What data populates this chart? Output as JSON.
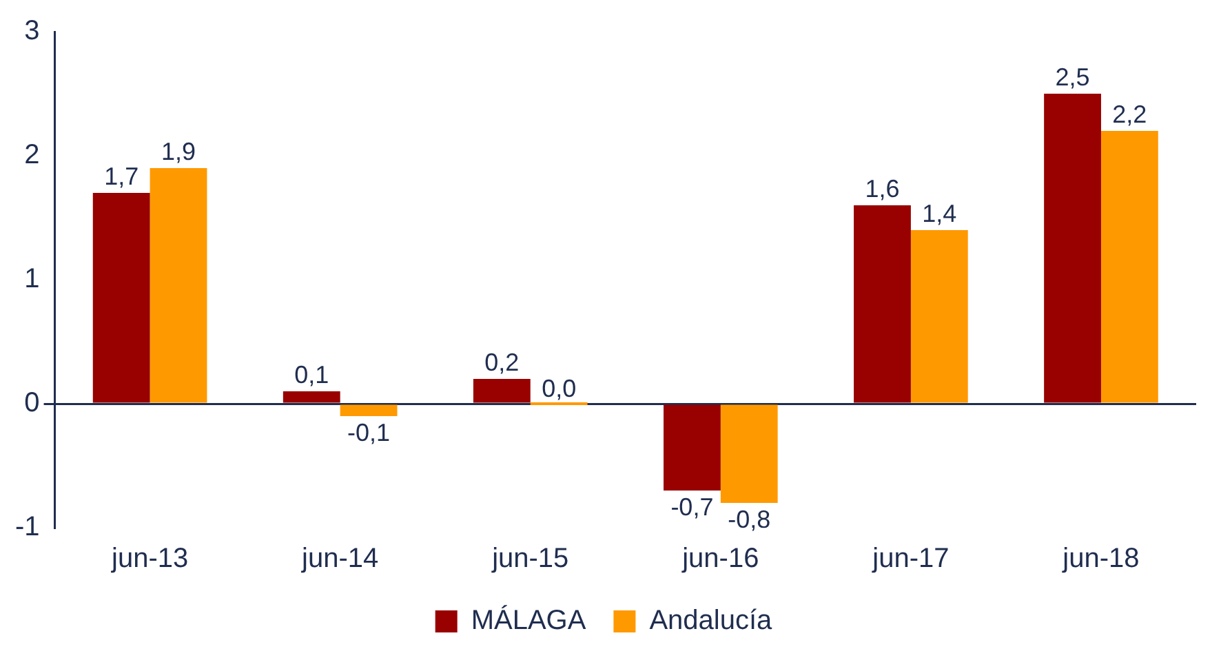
{
  "chart_data": {
    "type": "bar",
    "categories": [
      "jun-13",
      "jun-14",
      "jun-15",
      "jun-16",
      "jun-17",
      "jun-18"
    ],
    "series": [
      {
        "name": "MÁLAGA",
        "color": "#990000",
        "values": [
          1.7,
          0.1,
          0.2,
          -0.7,
          1.6,
          2.5
        ],
        "value_labels": [
          "1,7",
          "0,1",
          "0,2",
          "-0,7",
          "1,6",
          "2,5"
        ]
      },
      {
        "name": "Andalucía",
        "color": "#ff9900",
        "values": [
          1.9,
          -0.1,
          0.0,
          -0.8,
          1.4,
          2.2
        ],
        "value_labels": [
          "1,9",
          "-0,1",
          "0,0",
          "-0,8",
          "1,4",
          "2,2"
        ]
      }
    ],
    "ylim": [
      -1,
      3
    ],
    "yticks": [
      -1,
      0,
      1,
      2,
      3
    ],
    "grid": false,
    "legend": "bottom"
  }
}
